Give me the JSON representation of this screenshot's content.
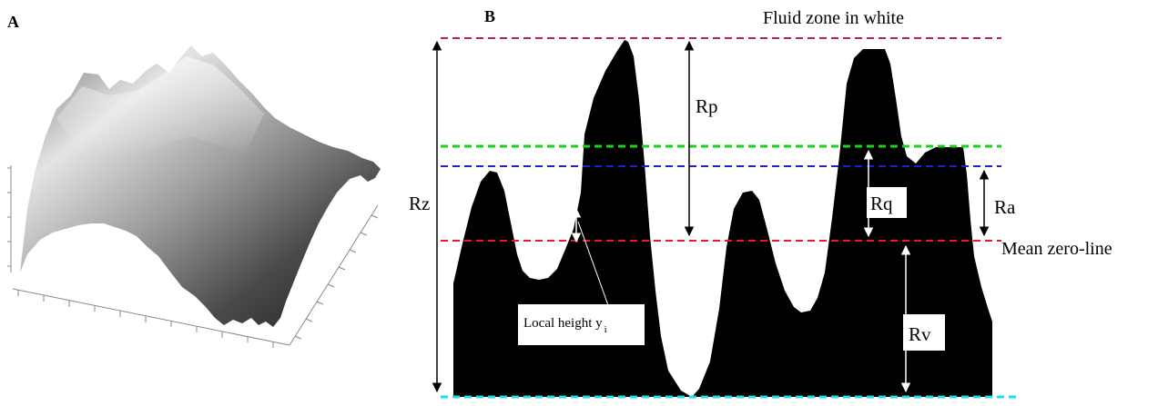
{
  "panel_a": {
    "label": "A"
  },
  "panel_b": {
    "label": "B",
    "title": "Fluid zone in white",
    "labels": {
      "rp": "Rp",
      "rz": "Rz",
      "rq": "Rq",
      "ra": "Ra",
      "rv": "Rv",
      "mean_line": "Mean zero-line",
      "local_height": "Local height y",
      "local_height_sub": "i"
    },
    "colors": {
      "profile": "#000000",
      "peak_line": "#c0223f",
      "rq_line": "#19d219",
      "ra_line": "#1a22c8",
      "mean_line": "#e8192c",
      "valley_line": "#19e0e6"
    }
  }
}
